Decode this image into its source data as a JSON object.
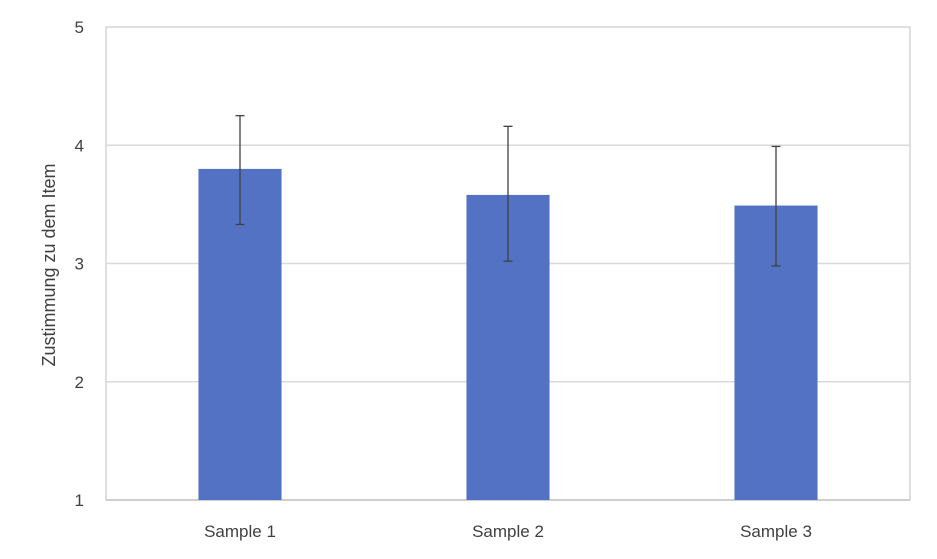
{
  "chart_data": {
    "type": "bar",
    "title": "",
    "xlabel": "",
    "ylabel": "Zustimmung zu dem Item",
    "categories": [
      "Sample 1",
      "Sample 2",
      "Sample 3"
    ],
    "values": [
      3.8,
      3.58,
      3.49
    ],
    "error_low": [
      3.33,
      3.02,
      2.98
    ],
    "error_high": [
      4.25,
      4.16,
      3.99
    ],
    "ylim": [
      1,
      5
    ],
    "yticks": [
      "1",
      "2",
      "3",
      "4",
      "5"
    ],
    "grid": true,
    "legend": "none",
    "bar_color": "#5472c4",
    "error_color": "#404040",
    "grid_color": "#d9d9d9"
  }
}
